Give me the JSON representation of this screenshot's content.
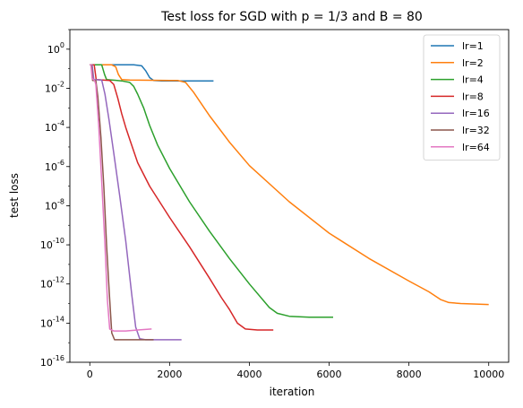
{
  "chart_data": {
    "type": "line",
    "title": "Test loss for SGD with p = 1/3 and B = 80",
    "xlabel": "iteration",
    "ylabel": "test loss",
    "xlim": [
      -500,
      10500
    ],
    "ylim_exp": [
      -16,
      1
    ],
    "y_scale": "log",
    "x_ticks": [
      0,
      2000,
      4000,
      6000,
      8000,
      10000
    ],
    "x_tick_labels": [
      "0",
      "2000",
      "4000",
      "6000",
      "8000",
      "10000"
    ],
    "y_ticks_exp": [
      0,
      -2,
      -4,
      -6,
      -8,
      -10,
      -12,
      -14,
      -16
    ],
    "y_tick_labels": [
      "10^0",
      "10^-2",
      "10^-4",
      "10^-6",
      "10^-8",
      "10^-10",
      "10^-12",
      "10^-14",
      "10^-16"
    ],
    "legend_position": "top-right",
    "series": [
      {
        "name": "lr=1",
        "color": "#1f77b4",
        "points": [
          [
            0,
            -0.8
          ],
          [
            700,
            -0.8
          ],
          [
            1100,
            -0.8
          ],
          [
            1300,
            -0.85
          ],
          [
            1400,
            -1.1
          ],
          [
            1500,
            -1.45
          ],
          [
            1600,
            -1.6
          ],
          [
            1800,
            -1.62
          ],
          [
            3100,
            -1.62
          ]
        ]
      },
      {
        "name": "lr=2",
        "color": "#ff7f0e",
        "points": [
          [
            0,
            -0.8
          ],
          [
            550,
            -0.8
          ],
          [
            650,
            -0.9
          ],
          [
            720,
            -1.3
          ],
          [
            800,
            -1.55
          ],
          [
            1000,
            -1.58
          ],
          [
            2000,
            -1.6
          ],
          [
            2200,
            -1.6
          ],
          [
            2400,
            -1.7
          ],
          [
            2600,
            -2.2
          ],
          [
            2800,
            -2.8
          ],
          [
            3000,
            -3.4
          ],
          [
            3500,
            -4.75
          ],
          [
            4000,
            -5.95
          ],
          [
            5000,
            -7.8
          ],
          [
            6000,
            -9.4
          ],
          [
            7000,
            -10.7
          ],
          [
            8000,
            -11.85
          ],
          [
            8500,
            -12.4
          ],
          [
            8800,
            -12.8
          ],
          [
            9000,
            -12.95
          ],
          [
            9300,
            -13.0
          ],
          [
            10000,
            -13.05
          ]
        ]
      },
      {
        "name": "lr=4",
        "color": "#2ca02c",
        "points": [
          [
            0,
            -0.8
          ],
          [
            300,
            -0.8
          ],
          [
            370,
            -1.3
          ],
          [
            420,
            -1.55
          ],
          [
            800,
            -1.62
          ],
          [
            1000,
            -1.7
          ],
          [
            1100,
            -1.9
          ],
          [
            1200,
            -2.3
          ],
          [
            1350,
            -3.0
          ],
          [
            1500,
            -3.9
          ],
          [
            1700,
            -4.9
          ],
          [
            2000,
            -6.1
          ],
          [
            2500,
            -7.8
          ],
          [
            3000,
            -9.3
          ],
          [
            3500,
            -10.7
          ],
          [
            4000,
            -12.0
          ],
          [
            4500,
            -13.2
          ],
          [
            4700,
            -13.5
          ],
          [
            5000,
            -13.65
          ],
          [
            5500,
            -13.7
          ],
          [
            6100,
            -13.7
          ]
        ]
      },
      {
        "name": "lr=8",
        "color": "#d62728",
        "points": [
          [
            0,
            -0.8
          ],
          [
            110,
            -0.8
          ],
          [
            160,
            -1.55
          ],
          [
            500,
            -1.6
          ],
          [
            600,
            -1.8
          ],
          [
            700,
            -2.5
          ],
          [
            800,
            -3.3
          ],
          [
            900,
            -4.0
          ],
          [
            1000,
            -4.6
          ],
          [
            1200,
            -5.8
          ],
          [
            1500,
            -7.0
          ],
          [
            2000,
            -8.6
          ],
          [
            2500,
            -10.1
          ],
          [
            3000,
            -11.7
          ],
          [
            3300,
            -12.7
          ],
          [
            3500,
            -13.3
          ],
          [
            3700,
            -14.0
          ],
          [
            3900,
            -14.3
          ],
          [
            4200,
            -14.35
          ],
          [
            4600,
            -14.35
          ]
        ]
      },
      {
        "name": "lr=16",
        "color": "#9467bd",
        "points": [
          [
            0,
            -0.8
          ],
          [
            60,
            -0.8
          ],
          [
            100,
            -1.55
          ],
          [
            300,
            -1.58
          ],
          [
            380,
            -2.3
          ],
          [
            480,
            -3.6
          ],
          [
            600,
            -5.3
          ],
          [
            750,
            -7.5
          ],
          [
            900,
            -9.8
          ],
          [
            1050,
            -12.5
          ],
          [
            1150,
            -14.2
          ],
          [
            1250,
            -14.8
          ],
          [
            1400,
            -14.85
          ],
          [
            2300,
            -14.85
          ]
        ]
      },
      {
        "name": "lr=32",
        "color": "#8c564b",
        "points": [
          [
            0,
            -0.8
          ],
          [
            40,
            -0.8
          ],
          [
            70,
            -1.6
          ],
          [
            150,
            -1.6
          ],
          [
            200,
            -2.4
          ],
          [
            280,
            -4.5
          ],
          [
            350,
            -7.0
          ],
          [
            420,
            -10.0
          ],
          [
            490,
            -12.5
          ],
          [
            550,
            -14.5
          ],
          [
            620,
            -14.85
          ],
          [
            800,
            -14.85
          ],
          [
            1000,
            -14.85
          ],
          [
            1600,
            -14.85
          ]
        ]
      },
      {
        "name": "lr=64",
        "color": "#e377c2",
        "points": [
          [
            0,
            -0.8
          ],
          [
            30,
            -0.8
          ],
          [
            60,
            -1.5
          ],
          [
            120,
            -1.6
          ],
          [
            150,
            -1.8
          ],
          [
            220,
            -3.8
          ],
          [
            300,
            -6.8
          ],
          [
            380,
            -10.0
          ],
          [
            440,
            -12.8
          ],
          [
            500,
            -14.3
          ],
          [
            600,
            -14.4
          ],
          [
            900,
            -14.4
          ],
          [
            1200,
            -14.35
          ],
          [
            1550,
            -14.3
          ]
        ]
      }
    ]
  }
}
